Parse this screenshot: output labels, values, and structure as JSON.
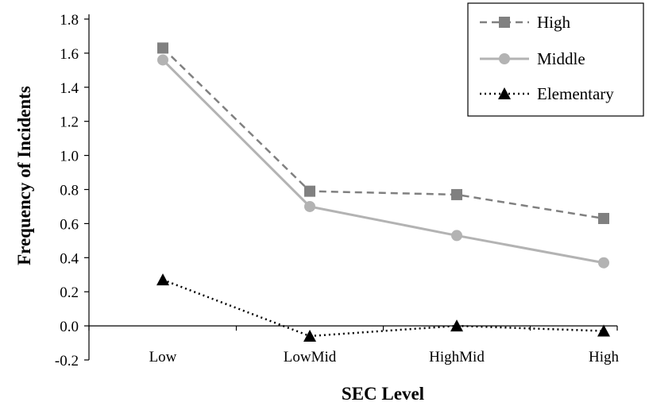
{
  "chart_data": {
    "type": "line",
    "xlabel": "SEC Level",
    "ylabel": "Frequency of Incidents",
    "categories": [
      "Low",
      "LowMid",
      "HighMid",
      "High"
    ],
    "ylim": [
      -0.2,
      1.8
    ],
    "yticks": [
      -0.2,
      0.0,
      0.2,
      0.4,
      0.6,
      0.8,
      1.0,
      1.2,
      1.4,
      1.6,
      1.8
    ],
    "ytick_labels": [
      "-0.2",
      "0.0",
      "0.2",
      "0.4",
      "0.6",
      "0.8",
      "1.0",
      "1.2",
      "1.4",
      "1.6",
      "1.8"
    ],
    "grid": false,
    "legend_position": "top-right",
    "series": [
      {
        "name": "High",
        "values": [
          1.63,
          0.79,
          0.77,
          0.63
        ],
        "color": "#808080",
        "line": "dashed",
        "marker": "square"
      },
      {
        "name": "Middle",
        "values": [
          1.56,
          0.7,
          0.53,
          0.37
        ],
        "color": "#b3b3b3",
        "line": "solid",
        "marker": "circle"
      },
      {
        "name": "Elementary",
        "values": [
          0.27,
          -0.06,
          0.0,
          -0.03
        ],
        "color": "#000000",
        "line": "dotted",
        "marker": "triangle"
      }
    ]
  }
}
